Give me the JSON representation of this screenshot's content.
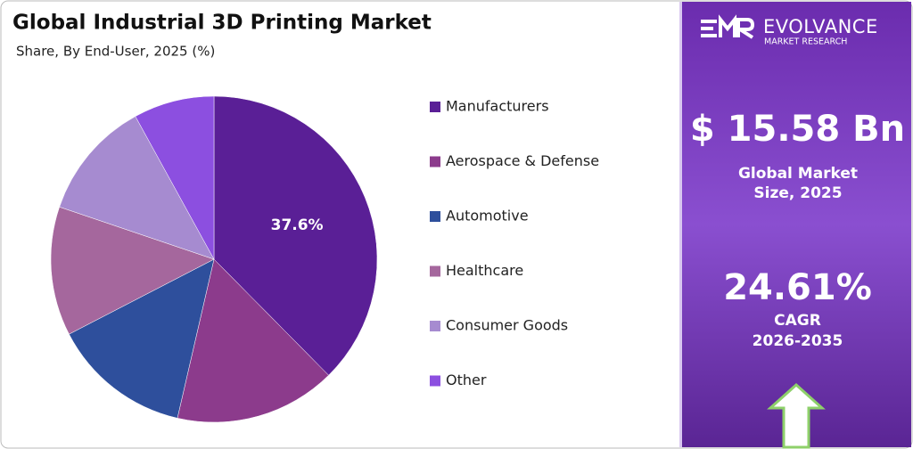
{
  "chart_data": {
    "type": "pie",
    "title": "Global Industrial 3D Printing Market",
    "subtitle": "Share, By End-User, 2025 (%)",
    "categories": [
      "Manufacturers",
      "Aerospace & Defense",
      "Automotive",
      "Healthcare",
      "Consumer Goods",
      "Other"
    ],
    "values": [
      37.6,
      16,
      13.8,
      12.8,
      11.8,
      8
    ],
    "value_labels": [
      "37.6%",
      null,
      null,
      null,
      null,
      null
    ],
    "colors": [
      "#5a1f96",
      "#8c3b8c",
      "#2e4f9c",
      "#a5679d",
      "#a68bd0",
      "#8c4fe0"
    ]
  },
  "panel": {
    "brand": "EVOLVANCE",
    "brand_sub": "MARKET RESEARCH",
    "market_size": "$ 15.58 Bn",
    "market_size_label": "Global Market Size, 2025",
    "cagr": "24.61%",
    "cagr_label": "CAGR",
    "cagr_period": "2026-2035"
  }
}
